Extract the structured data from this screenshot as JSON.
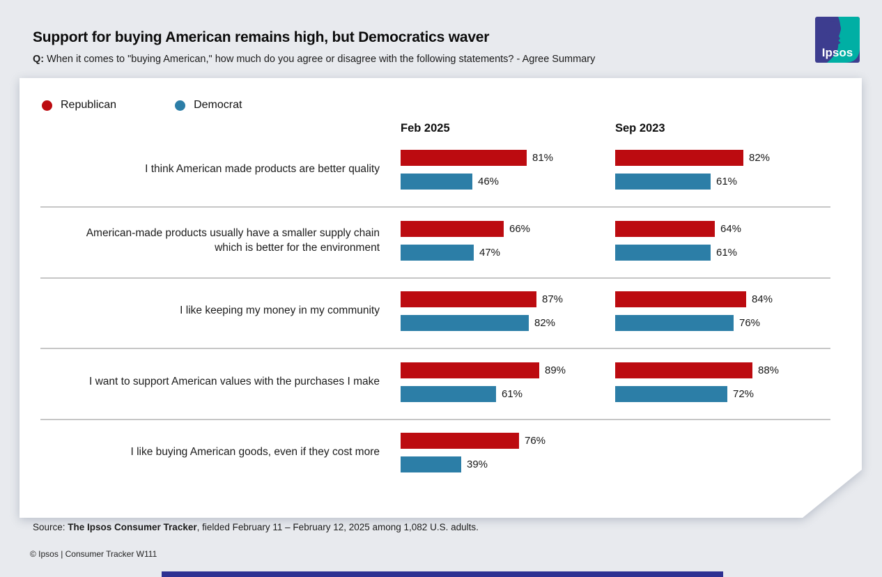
{
  "header": {
    "title": "Support for buying American remains high, but Democratics waver",
    "question_prefix": "Q:",
    "question": "When it comes to \"buying American,\" how much do you agree or disagree with the following statements? - Agree Summary"
  },
  "logo": {
    "text": "Ipsos"
  },
  "legend": [
    {
      "label": "Republican"
    },
    {
      "label": "Democrat"
    }
  ],
  "chart_data": {
    "type": "bar",
    "orientation": "horizontal",
    "title": "Support for buying American remains high, but Democratics waver",
    "unit": "%",
    "xlim": [
      0,
      100
    ],
    "legend_position": "top-left",
    "categories": [
      "I think American made products are better quality",
      "American-made products usually have a smaller supply chain\nwhich is better for the environment",
      "I like keeping my money in my community",
      "I want to support American values with the purchases I make",
      "I like buying American goods, even if they cost more"
    ],
    "column_groups": [
      {
        "period": "Feb 2025",
        "series": [
          {
            "name": "Republican",
            "color": "#BC0B10",
            "values": [
              81,
              66,
              87,
              89,
              76
            ]
          },
          {
            "name": "Democrat",
            "color": "#2C7EA7",
            "values": [
              46,
              47,
              82,
              61,
              39
            ]
          }
        ]
      },
      {
        "period": "Sep 2023",
        "series": [
          {
            "name": "Republican",
            "color": "#BC0B10",
            "values": [
              82,
              64,
              84,
              88,
              null
            ]
          },
          {
            "name": "Democrat",
            "color": "#2C7EA7",
            "values": [
              61,
              61,
              76,
              72,
              null
            ]
          }
        ]
      }
    ]
  },
  "footer": {
    "source_prefix": "Source: ",
    "source_bold": "The Ipsos Consumer Tracker",
    "source_rest": ", fielded February 11 – February 12, 2025 among 1,082 U.S. adults.",
    "copyright": "© Ipsos | Consumer Tracker W111"
  },
  "colors": {
    "republican": "#BC0B10",
    "democrat": "#2C7EA7",
    "background": "#E8EAEE",
    "card": "#FFFFFF",
    "separator": "#C6C6C6",
    "accent_bar": "#2E3192",
    "logo_indigo": "#3D3D8F",
    "logo_teal": "#00AFA4"
  }
}
